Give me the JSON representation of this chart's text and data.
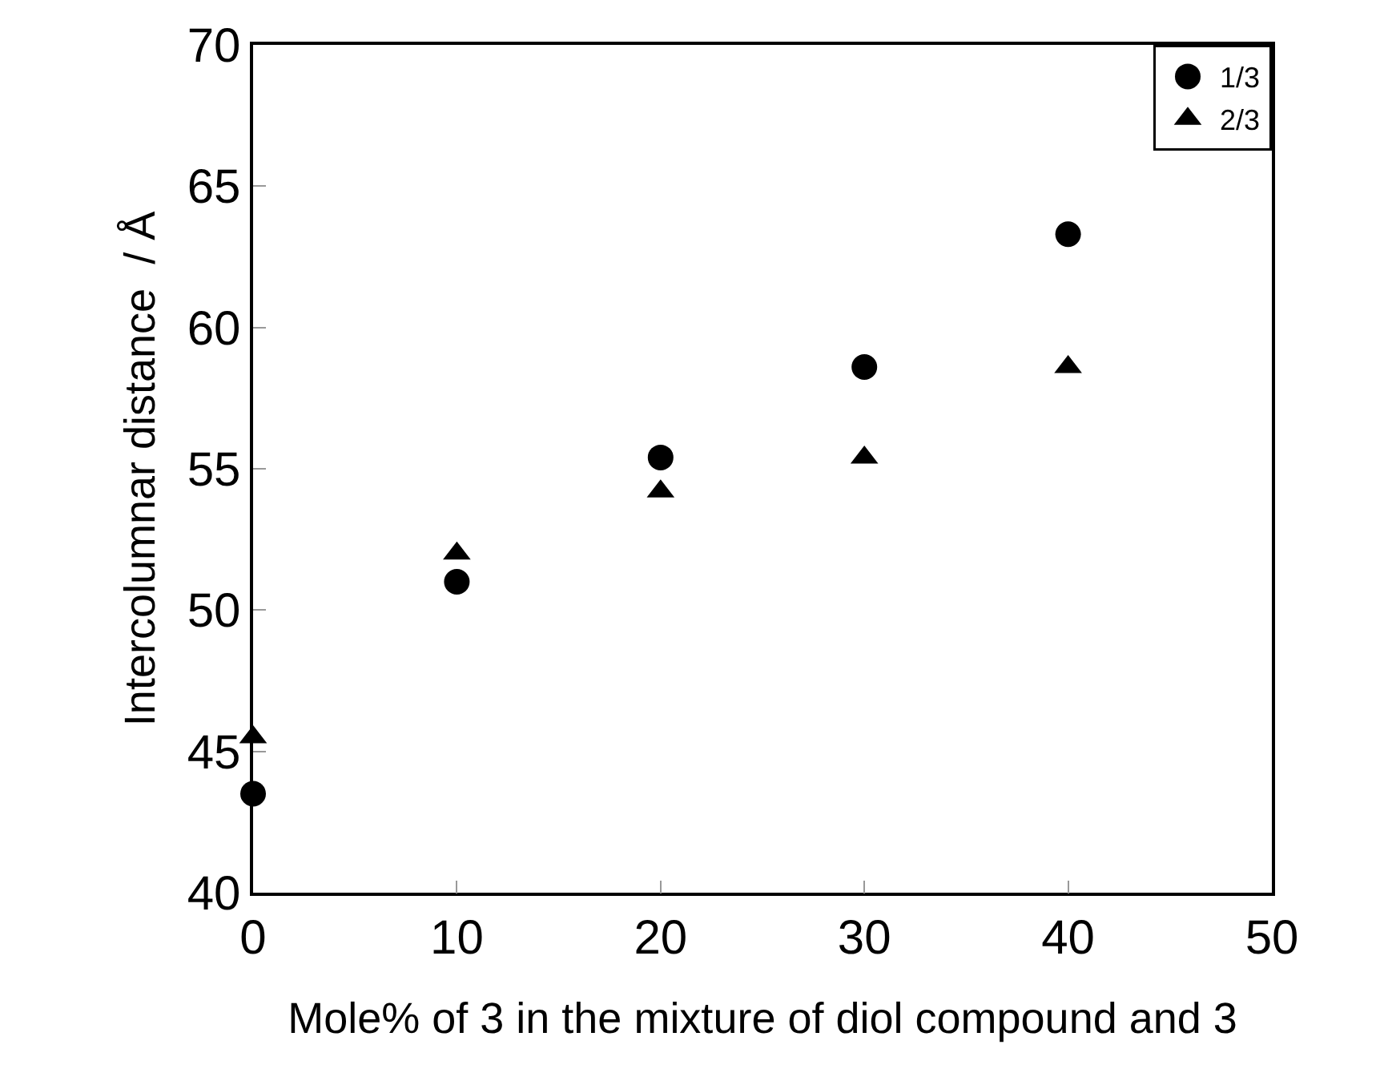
{
  "chart_data": {
    "type": "scatter",
    "xlabel": "Mole% of 3 in the mixture of diol compound and 3",
    "ylabel": "Intercolumnar distance  / Å",
    "x": [
      0,
      10,
      20,
      30,
      40
    ],
    "series": [
      {
        "name": "1/3",
        "color": "#000000",
        "marker": "circle",
        "values": [
          43.5,
          51.0,
          55.4,
          58.6,
          63.3
        ]
      },
      {
        "name": "2/3",
        "color": "#000000",
        "marker": "triangle",
        "values": [
          45.5,
          52.0,
          54.2,
          55.4,
          58.6
        ]
      }
    ],
    "xlim": [
      0,
      50
    ],
    "xticks": [
      0,
      10,
      20,
      30,
      40,
      50
    ],
    "ylim": [
      40,
      70
    ],
    "yticks": [
      40,
      45,
      50,
      55,
      60,
      65,
      70
    ],
    "legend": "top right"
  }
}
